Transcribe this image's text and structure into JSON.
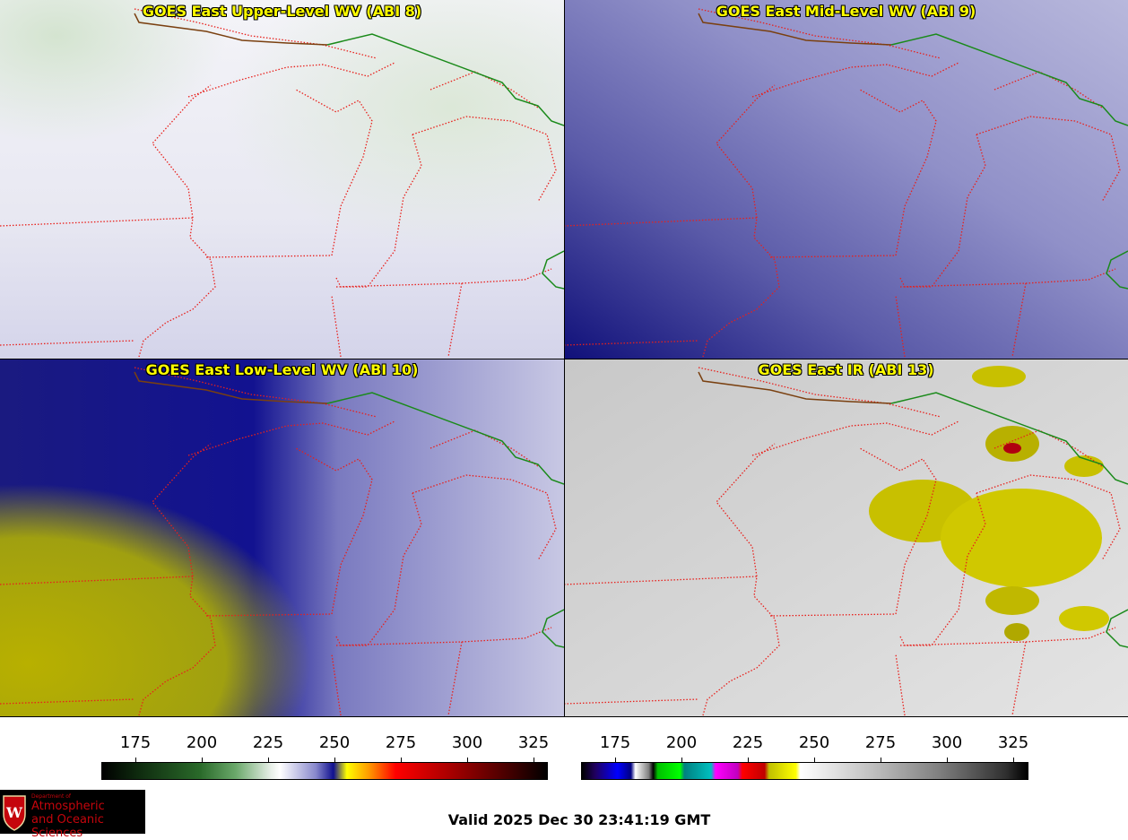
{
  "panels": [
    {
      "id": "upper",
      "title": "GOES East Upper-Level WV (ABI 8)"
    },
    {
      "id": "mid",
      "title": "GOES East Mid-Level WV (ABI 9)"
    },
    {
      "id": "low",
      "title": "GOES East Low-Level WV (ABI 10)"
    },
    {
      "id": "ir",
      "title": "GOES East IR (ABI 13)"
    }
  ],
  "colorbars": {
    "wv": {
      "ticks": [
        "175",
        "200",
        "225",
        "250",
        "275",
        "300",
        "325"
      ]
    },
    "ir": {
      "ticks": [
        "175",
        "200",
        "225",
        "250",
        "275",
        "300",
        "325"
      ]
    }
  },
  "logo": {
    "line1": "Department of",
    "line2": "Atmospheric",
    "line3": "and Oceanic Sciences",
    "icon": "uw-crest-icon"
  },
  "valid_time": "Valid 2025 Dec 30 23:41:19 GMT",
  "colors": {
    "border_state": "#e8201c",
    "border_intl": "#1a8a1a",
    "border_coast": "#7a4010",
    "title": "#ffff00"
  }
}
